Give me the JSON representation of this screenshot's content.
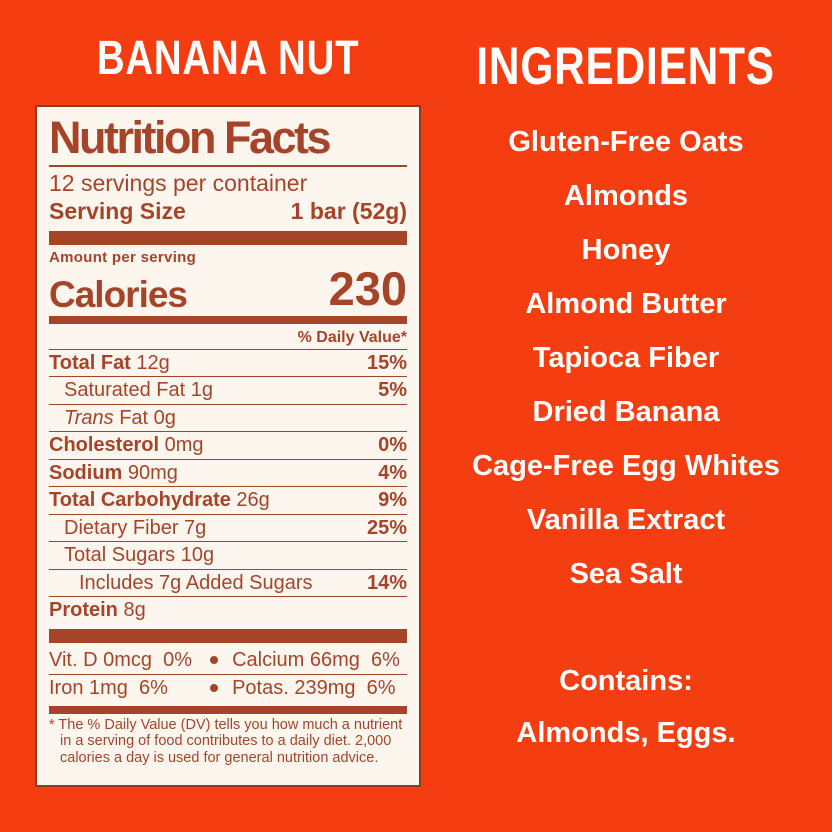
{
  "colors": {
    "background": "#F43D11",
    "label_text": "#A6442A",
    "card_background": "#FCF6EE",
    "card_border": "#8E3A20",
    "right_text": "#FFFFFF"
  },
  "left": {
    "flavor_title": "BANANA NUT"
  },
  "label": {
    "title": "Nutrition Facts",
    "servings_per_container": "12 servings per container",
    "serving_size_label": "Serving Size",
    "serving_size_value": "1 bar (52g)",
    "amount_per_serving": "Amount per serving",
    "calories_label": "Calories",
    "calories_value": "230",
    "daily_value_header": "% Daily Value*",
    "rows": [
      {
        "indent": 0,
        "bold_part": "Total Fat",
        "regular_part": " 12g",
        "dv": "15%"
      },
      {
        "indent": 1,
        "regular_part": "Saturated Fat 1g",
        "dv": "5%"
      },
      {
        "indent": 1,
        "italic_part": "Trans",
        "regular_part": " Fat 0g",
        "dv": ""
      },
      {
        "indent": 0,
        "bold_part": "Cholesterol",
        "regular_part": " 0mg",
        "dv": "0%"
      },
      {
        "indent": 0,
        "bold_part": "Sodium",
        "regular_part": " 90mg",
        "dv": "4%"
      },
      {
        "indent": 0,
        "bold_part": "Total Carbohydrate",
        "regular_part": " 26g",
        "dv": "9%"
      },
      {
        "indent": 1,
        "regular_part": "Dietary Fiber 7g",
        "dv": "25%"
      },
      {
        "indent": 1,
        "regular_part": "Total Sugars 10g",
        "dv": ""
      },
      {
        "indent": 2,
        "regular_part": "Includes 7g Added Sugars",
        "dv": "14%"
      },
      {
        "indent": 0,
        "bold_part": "Protein",
        "regular_part": " 8g",
        "dv": ""
      }
    ],
    "micros": [
      {
        "left": "Vit. D 0mcg  0%",
        "right": "Calcium 66mg  6%"
      },
      {
        "left": "Iron 1mg  6%",
        "right": "Potas. 239mg  6%"
      }
    ],
    "footnote": "* The % Daily Value (DV) tells you how much a nutrient in a serving of food contributes to a daily diet. 2,000 calories a day is used for general nutrition advice."
  },
  "right": {
    "title": "INGREDIENTS",
    "items": [
      "Gluten-Free Oats",
      "Almonds",
      "Honey",
      "Almond Butter",
      "Tapioca Fiber",
      "Dried Banana",
      "Cage-Free Egg Whites",
      "Vanilla Extract",
      "Sea Salt"
    ],
    "contains_label": "Contains:",
    "contains_value": "Almonds, Eggs."
  }
}
